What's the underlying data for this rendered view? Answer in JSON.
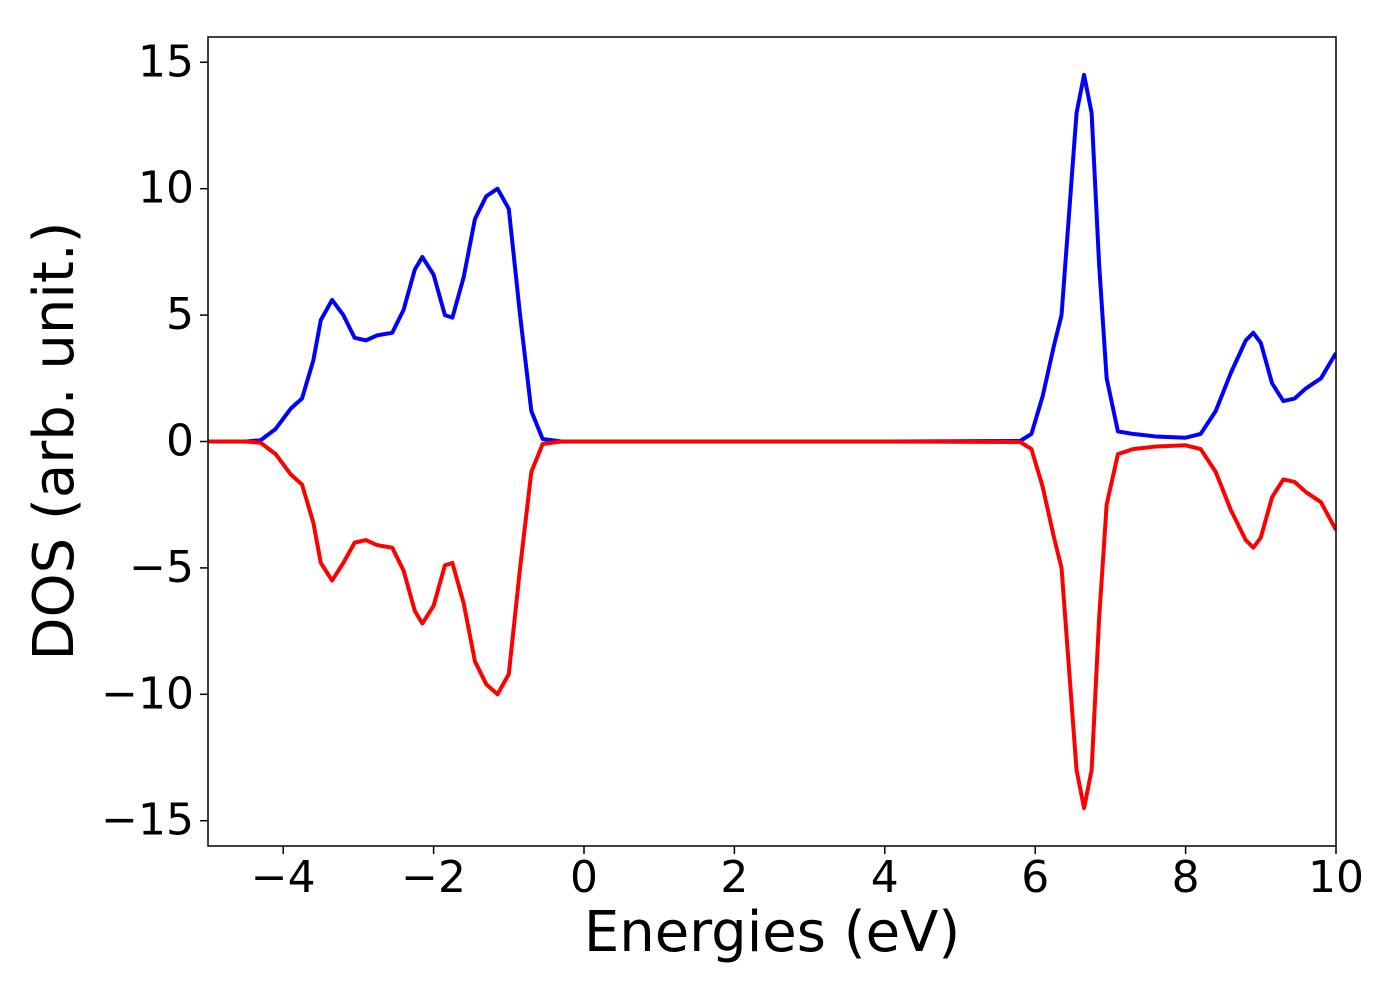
{
  "chart_data": {
    "type": "line",
    "xlabel": "Energies (eV)",
    "ylabel": "DOS (arb. unit.)",
    "x": [
      -5,
      -4.5,
      -4.3,
      -4.1,
      -3.9,
      -3.75,
      -3.6,
      -3.5,
      -3.35,
      -3.2,
      -3.05,
      -2.9,
      -2.75,
      -2.55,
      -2.4,
      -2.25,
      -2.15,
      -2.0,
      -1.85,
      -1.75,
      -1.6,
      -1.45,
      -1.3,
      -1.15,
      -1.0,
      -0.85,
      -0.7,
      -0.55,
      -0.3,
      0,
      2,
      4,
      5.8,
      5.95,
      6.1,
      6.25,
      6.35,
      6.45,
      6.55,
      6.65,
      6.75,
      6.85,
      6.95,
      7.1,
      7.3,
      7.6,
      8.0,
      8.2,
      8.4,
      8.6,
      8.8,
      8.9,
      9.0,
      9.15,
      9.3,
      9.45,
      9.6,
      9.8,
      10
    ],
    "series": [
      {
        "color": "#0000ff",
        "values": [
          0,
          0,
          0.05,
          0.5,
          1.3,
          1.7,
          3.2,
          4.8,
          5.6,
          5.0,
          4.1,
          4.0,
          4.2,
          4.3,
          5.2,
          6.8,
          7.3,
          6.6,
          5.0,
          4.9,
          6.5,
          8.8,
          9.7,
          10.0,
          9.2,
          5.0,
          1.2,
          0.1,
          0,
          0,
          0,
          0,
          0.02,
          0.3,
          1.8,
          3.8,
          5.0,
          9.0,
          13.0,
          14.5,
          13.0,
          7.0,
          2.5,
          0.4,
          0.3,
          0.2,
          0.15,
          0.3,
          1.2,
          2.7,
          4.0,
          4.3,
          3.9,
          2.3,
          1.6,
          1.7,
          2.1,
          2.5,
          3.5
        ]
      },
      {
        "color": "#ff0000",
        "values": [
          0,
          0,
          -0.05,
          -0.5,
          -1.3,
          -1.7,
          -3.2,
          -4.8,
          -5.5,
          -4.8,
          -4.0,
          -3.9,
          -4.1,
          -4.2,
          -5.1,
          -6.7,
          -7.2,
          -6.5,
          -4.9,
          -4.8,
          -6.4,
          -8.7,
          -9.6,
          -10.0,
          -9.2,
          -5.0,
          -1.2,
          -0.1,
          0,
          0,
          0,
          0,
          -0.02,
          -0.3,
          -1.8,
          -3.8,
          -5.0,
          -9.0,
          -13.0,
          -14.5,
          -13.0,
          -7.0,
          -2.5,
          -0.5,
          -0.3,
          -0.2,
          -0.15,
          -0.3,
          -1.2,
          -2.7,
          -3.9,
          -4.2,
          -3.8,
          -2.2,
          -1.5,
          -1.6,
          -2.0,
          -2.4,
          -3.5
        ]
      }
    ],
    "xlim": [
      -5,
      10
    ],
    "ylim": [
      -16,
      16
    ],
    "xticks": [
      {
        "value": -4,
        "label": "−4"
      },
      {
        "value": -2,
        "label": "−2"
      },
      0,
      2,
      4,
      6,
      8,
      10
    ],
    "yticks": [
      {
        "value": -15,
        "label": "−15"
      },
      {
        "value": -10,
        "label": "−10"
      },
      {
        "value": -5,
        "label": "−5"
      },
      0,
      5,
      10,
      15
    ],
    "grid": false
  }
}
